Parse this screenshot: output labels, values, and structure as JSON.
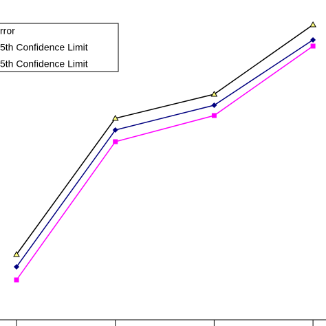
{
  "chart_data": {
    "type": "line",
    "categories": [
      null,
      null,
      null,
      null
    ],
    "series": [
      {
        "name": "rror",
        "color": "#000080",
        "marker": "diamond",
        "values": [
          77,
          276,
          312,
          407
        ]
      },
      {
        "name": "5th Confidence Limit",
        "color": "#000000",
        "marker": "triangle",
        "values": [
          95,
          293,
          328,
          429
        ]
      },
      {
        "name": "5th Confidence Limit",
        "color": "#ff00ff",
        "marker": "square",
        "values": [
          58,
          259,
          297,
          398
        ]
      }
    ],
    "ylim": [
      0,
      465
    ]
  }
}
